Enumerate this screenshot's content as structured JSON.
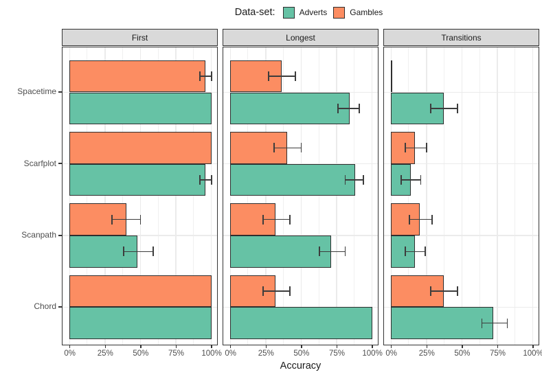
{
  "legend": {
    "title": "Data-set:"
  },
  "chart_data": {
    "type": "bar",
    "orientation": "horizontal",
    "xlabel": "Accuracy",
    "legend_title": "Data-set:",
    "legend_position": "top",
    "grid": true,
    "x_range": [
      0,
      100
    ],
    "x_ticks": [
      "0%",
      "25%",
      "50%",
      "75%",
      "100%"
    ],
    "x_tick_values": [
      0,
      25,
      50,
      75,
      100
    ],
    "categories": [
      "Spacetime",
      "Scarfplot",
      "Scanpath",
      "Chord"
    ],
    "series": [
      {
        "name": "Adverts",
        "color": "#66C2A5"
      },
      {
        "name": "Gambles",
        "color": "#FC8D62"
      }
    ],
    "facet_labels": [
      "First",
      "Longest",
      "Transitions"
    ],
    "panels": [
      {
        "label": "First",
        "gambles": [
          {
            "value": 96,
            "ci": [
              92,
              100
            ]
          },
          {
            "value": 100,
            "ci": null
          },
          {
            "value": 40,
            "ci": [
              30,
              50
            ]
          },
          {
            "value": 100,
            "ci": null
          }
        ],
        "adverts": [
          {
            "value": 100,
            "ci": null
          },
          {
            "value": 96,
            "ci": [
              92,
              100
            ]
          },
          {
            "value": 48,
            "ci": [
              38,
              59
            ]
          },
          {
            "value": 100,
            "ci": null
          }
        ]
      },
      {
        "label": "Longest",
        "gambles": [
          {
            "value": 36,
            "ci": [
              27,
              46
            ]
          },
          {
            "value": 40,
            "ci": [
              31,
              50
            ]
          },
          {
            "value": 32,
            "ci": [
              23,
              42
            ]
          },
          {
            "value": 32,
            "ci": [
              23,
              42
            ]
          }
        ],
        "adverts": [
          {
            "value": 84,
            "ci": [
              76,
              91
            ]
          },
          {
            "value": 88,
            "ci": [
              81,
              94
            ]
          },
          {
            "value": 71,
            "ci": [
              63,
              81
            ]
          },
          {
            "value": 100,
            "ci": null
          }
        ]
      },
      {
        "label": "Transitions",
        "gambles": [
          {
            "value": 0,
            "ci": null
          },
          {
            "value": 17,
            "ci": [
              10,
              25
            ]
          },
          {
            "value": 20,
            "ci": [
              13,
              29
            ]
          },
          {
            "value": 37,
            "ci": [
              28,
              47
            ]
          }
        ],
        "adverts": [
          {
            "value": 37,
            "ci": [
              28,
              47
            ]
          },
          {
            "value": 14,
            "ci": [
              7,
              21
            ]
          },
          {
            "value": 17,
            "ci": [
              10,
              24
            ]
          },
          {
            "value": 72,
            "ci": [
              64,
              82
            ]
          }
        ]
      }
    ],
    "colors": {
      "adverts": "#66C2A5",
      "gambles": "#FC8D62",
      "strip_fill": "#D9D9D9",
      "panel_border": "#333333",
      "gridline": "#EBEBEB",
      "error_bar": "#3C3C3C"
    }
  }
}
